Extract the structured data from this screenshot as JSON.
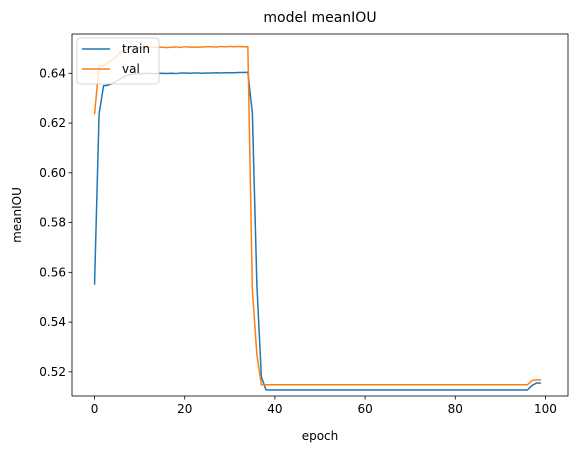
{
  "chart_data": {
    "type": "line",
    "title": "model meanIOU",
    "xlabel": "epoch",
    "ylabel": "meanIOU",
    "xlim": [
      -5,
      105
    ],
    "ylim": [
      0.5103,
      0.6558
    ],
    "xticks": [
      0,
      20,
      40,
      60,
      80,
      100
    ],
    "yticks": [
      0.52,
      0.54,
      0.56,
      0.58,
      0.6,
      0.62,
      0.64
    ],
    "ytick_labels": [
      "0.52",
      "0.54",
      "0.56",
      "0.58",
      "0.60",
      "0.62",
      "0.64"
    ],
    "grid": false,
    "legend_position": "upper left",
    "series": [
      {
        "name": "train",
        "color": "#1f77b4",
        "x": [
          0,
          1,
          2,
          3,
          4,
          5,
          6,
          7,
          8,
          9,
          10,
          11,
          12,
          13,
          14,
          15,
          16,
          17,
          18,
          19,
          20,
          21,
          22,
          23,
          24,
          25,
          26,
          27,
          28,
          29,
          30,
          31,
          32,
          33,
          34,
          35,
          36,
          37,
          38,
          39,
          40,
          41,
          42,
          43,
          44,
          45,
          46,
          47,
          48,
          49,
          50,
          51,
          52,
          53,
          54,
          55,
          56,
          57,
          58,
          59,
          60,
          61,
          62,
          63,
          64,
          65,
          66,
          67,
          68,
          69,
          70,
          71,
          72,
          73,
          74,
          75,
          76,
          77,
          78,
          79,
          80,
          81,
          82,
          83,
          84,
          85,
          86,
          87,
          88,
          89,
          90,
          91,
          92,
          93,
          94,
          95,
          96,
          97,
          98,
          99
        ],
        "y": [
          0.555,
          0.6235,
          0.635,
          0.6352,
          0.636,
          0.637,
          0.638,
          0.639,
          0.6395,
          0.6397,
          0.6398,
          0.6399,
          0.64,
          0.6398,
          0.6399,
          0.64,
          0.6399,
          0.64,
          0.6399,
          0.6401,
          0.6401,
          0.64,
          0.6401,
          0.6401,
          0.64,
          0.6401,
          0.6401,
          0.6402,
          0.6401,
          0.6402,
          0.6402,
          0.6402,
          0.6403,
          0.6403,
          0.6404,
          0.624,
          0.555,
          0.518,
          0.5128,
          0.5127,
          0.5127,
          0.5127,
          0.5127,
          0.5127,
          0.5127,
          0.5127,
          0.5127,
          0.5127,
          0.5127,
          0.5127,
          0.5127,
          0.5127,
          0.5127,
          0.5127,
          0.5127,
          0.5127,
          0.5127,
          0.5127,
          0.5127,
          0.5127,
          0.5127,
          0.5127,
          0.5127,
          0.5127,
          0.5127,
          0.5127,
          0.5127,
          0.5127,
          0.5127,
          0.5127,
          0.5127,
          0.5127,
          0.5127,
          0.5127,
          0.5127,
          0.5127,
          0.5127,
          0.5127,
          0.5127,
          0.5127,
          0.5127,
          0.5127,
          0.5127,
          0.5127,
          0.5127,
          0.5127,
          0.5127,
          0.5127,
          0.5127,
          0.5127,
          0.5127,
          0.5127,
          0.5127,
          0.5127,
          0.5127,
          0.5127,
          0.5127,
          0.5145,
          0.5155,
          0.5155
        ]
      },
      {
        "name": "val",
        "color": "#ff7f0e",
        "x": [
          0,
          1,
          2,
          3,
          4,
          5,
          6,
          7,
          8,
          9,
          10,
          11,
          12,
          13,
          14,
          15,
          16,
          17,
          18,
          19,
          20,
          21,
          22,
          23,
          24,
          25,
          26,
          27,
          28,
          29,
          30,
          31,
          32,
          33,
          34,
          35,
          36,
          37,
          38,
          39,
          40,
          41,
          42,
          43,
          44,
          45,
          46,
          47,
          48,
          49,
          50,
          51,
          52,
          53,
          54,
          55,
          56,
          57,
          58,
          59,
          60,
          61,
          62,
          63,
          64,
          65,
          66,
          67,
          68,
          69,
          70,
          71,
          72,
          73,
          74,
          75,
          76,
          77,
          78,
          79,
          80,
          81,
          82,
          83,
          84,
          85,
          86,
          87,
          88,
          89,
          90,
          91,
          92,
          93,
          94,
          95,
          96,
          97,
          98,
          99
        ],
        "y": [
          0.6235,
          0.643,
          0.643,
          0.6445,
          0.6455,
          0.647,
          0.649,
          0.6495,
          0.65,
          0.6502,
          0.6503,
          0.6505,
          0.6505,
          0.6503,
          0.6505,
          0.6505,
          0.6503,
          0.6505,
          0.6506,
          0.6504,
          0.6507,
          0.6505,
          0.6506,
          0.6505,
          0.6506,
          0.6507,
          0.6507,
          0.6505,
          0.6508,
          0.6506,
          0.6508,
          0.6507,
          0.6508,
          0.6507,
          0.6507,
          0.553,
          0.527,
          0.5148,
          0.5148,
          0.5148,
          0.5148,
          0.5148,
          0.5148,
          0.5148,
          0.5148,
          0.5148,
          0.5148,
          0.5148,
          0.5148,
          0.5148,
          0.5148,
          0.5148,
          0.5148,
          0.5148,
          0.5148,
          0.5148,
          0.5148,
          0.5148,
          0.5148,
          0.5148,
          0.5148,
          0.5148,
          0.5148,
          0.5148,
          0.5148,
          0.5148,
          0.5148,
          0.5148,
          0.5148,
          0.5148,
          0.5148,
          0.5148,
          0.5148,
          0.5148,
          0.5148,
          0.5148,
          0.5148,
          0.5148,
          0.5148,
          0.5148,
          0.5148,
          0.5148,
          0.5148,
          0.5148,
          0.5148,
          0.5148,
          0.5148,
          0.5148,
          0.5148,
          0.5148,
          0.5148,
          0.5148,
          0.5148,
          0.5148,
          0.5148,
          0.5148,
          0.5148,
          0.5165,
          0.5168,
          0.5168
        ]
      }
    ]
  }
}
